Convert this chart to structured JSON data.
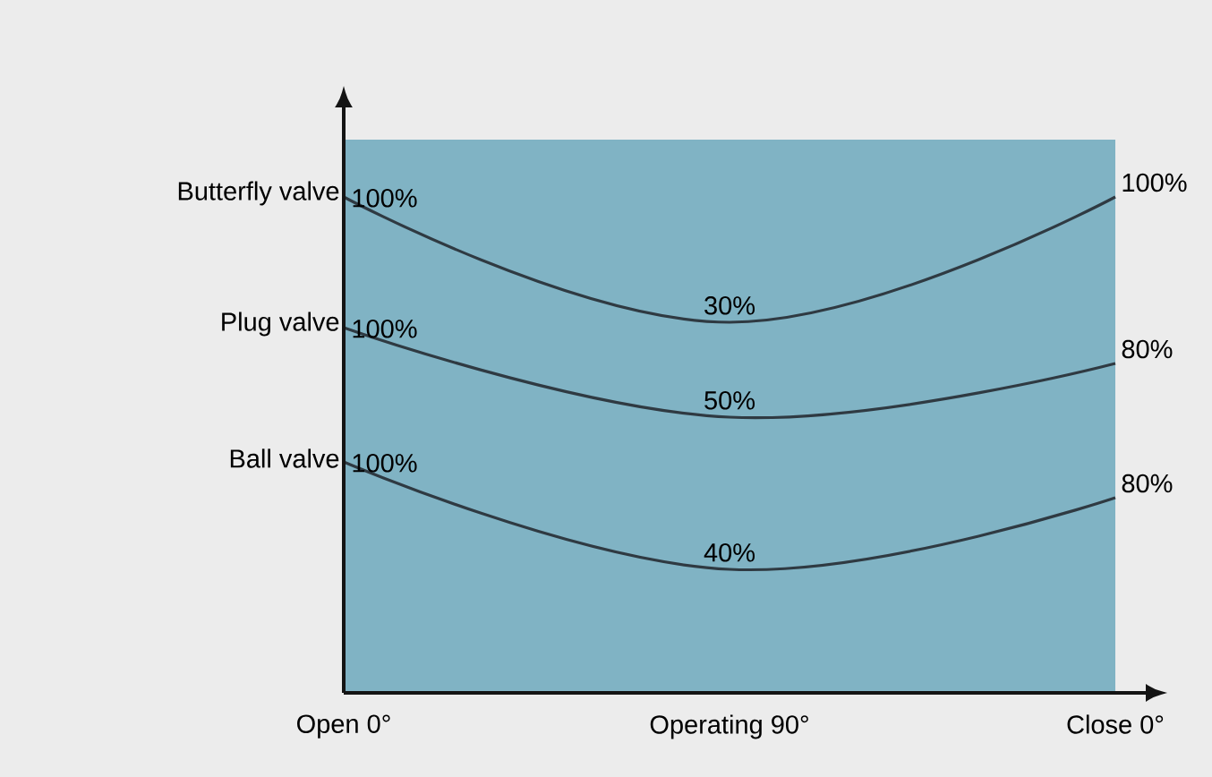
{
  "chart_data": {
    "type": "other",
    "categories": [
      "Open 0°",
      "Operating 90°",
      "Close 0°"
    ],
    "series": [
      {
        "name": "Butterfly valve",
        "values": [
          100,
          30,
          100
        ],
        "value_labels": [
          "100%",
          "30%",
          "100%"
        ]
      },
      {
        "name": "Plug valve",
        "values": [
          100,
          50,
          80
        ],
        "value_labels": [
          "100%",
          "50%",
          "80%"
        ]
      },
      {
        "name": "Ball valve",
        "values": [
          100,
          40,
          80
        ],
        "value_labels": [
          "100%",
          "40%",
          "80%"
        ]
      }
    ]
  }
}
